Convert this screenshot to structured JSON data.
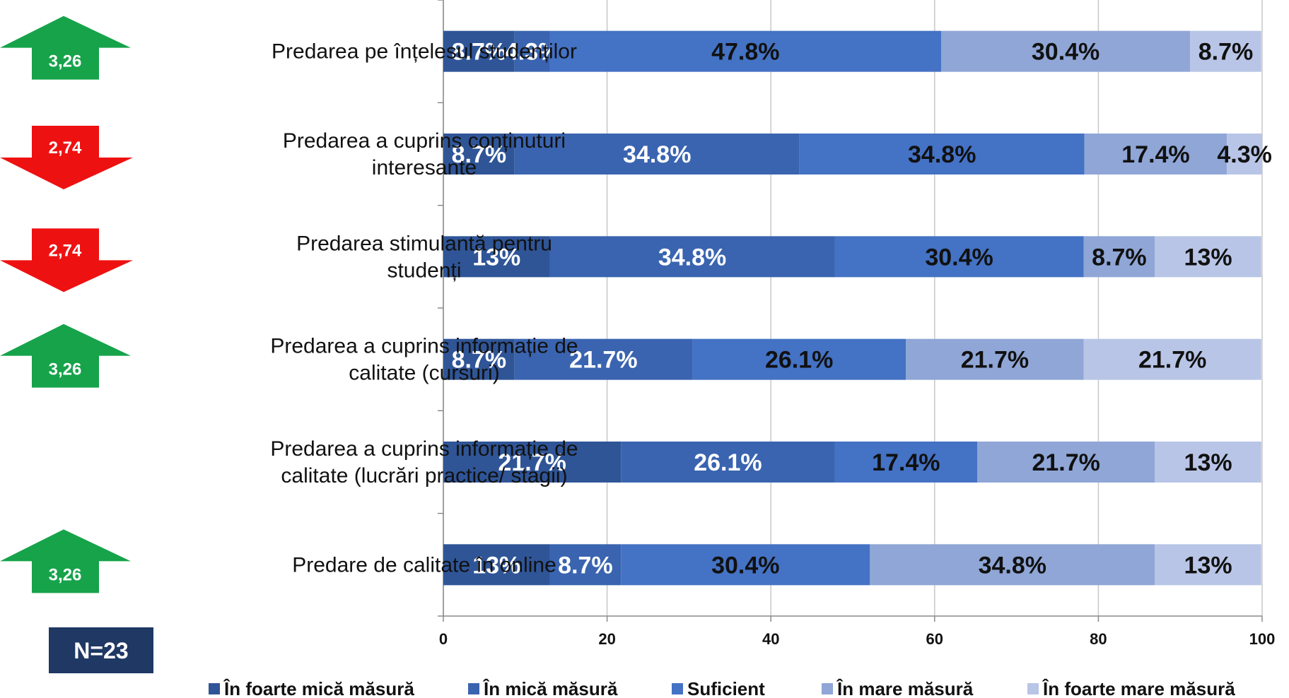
{
  "chart_data": {
    "type": "bar",
    "orientation": "horizontal",
    "stacked": true,
    "categories": [
      [
        "Predarea pe înțelesul studenților"
      ],
      [
        "Predarea a cuprins conținuturi",
        "interesante"
      ],
      [
        "Predarea stimulantă pentru",
        "studenți"
      ],
      [
        "Predarea a cuprins informație de",
        "calitate (cursuri)"
      ],
      [
        "Predarea a cuprins informație de",
        "calitate (lucrări practice/ stagii)"
      ],
      [
        "Predare de calitate în online"
      ]
    ],
    "series": [
      {
        "name": "În foarte mică măsură",
        "color": "#2f5597",
        "values": [
          8.7,
          8.7,
          13,
          8.7,
          21.7,
          13
        ],
        "labels": [
          "8.7%",
          "8.7%",
          "13%",
          "8.7%",
          "21.7%",
          "13%"
        ]
      },
      {
        "name": "În mică măsură",
        "color": "#3a64b0",
        "values": [
          4.3,
          34.8,
          34.8,
          21.7,
          26.1,
          8.7
        ],
        "labels": [
          "4.3%",
          "34.8%",
          "34.8%",
          "21.7%",
          "26.1%",
          "8.7%"
        ]
      },
      {
        "name": "Suficient",
        "color": "#4472c4",
        "values": [
          47.8,
          34.8,
          30.4,
          26.1,
          17.4,
          30.4
        ],
        "labels": [
          "47.8%",
          "34.8%",
          "30.4%",
          "26.1%",
          "17.4%",
          "30.4%"
        ]
      },
      {
        "name": "În mare măsură",
        "color": "#8fa6d6",
        "values": [
          30.4,
          17.4,
          8.7,
          21.7,
          21.7,
          34.8
        ],
        "labels": [
          "30.4%",
          "17.4%",
          "8.7%",
          "21.7%",
          "21.7%",
          "34.8%"
        ]
      },
      {
        "name": "În foarte mare măsură",
        "color": "#b8c5e6",
        "values": [
          8.7,
          4.3,
          13,
          21.7,
          13,
          13
        ],
        "labels": [
          "8.7%",
          "4.3%",
          "13%",
          "21.7%",
          "13%",
          "13%"
        ]
      }
    ],
    "label_text_colors": [
      [
        "#ffffff",
        "#ffffff",
        "#111111",
        "#111111",
        "#111111"
      ],
      [
        "#ffffff",
        "#ffffff",
        "#111111",
        "#111111",
        "#111111"
      ],
      [
        "#ffffff",
        "#ffffff",
        "#111111",
        "#111111",
        "#111111"
      ],
      [
        "#ffffff",
        "#ffffff",
        "#111111",
        "#111111",
        "#111111"
      ],
      [
        "#ffffff",
        "#ffffff",
        "#111111",
        "#111111",
        "#111111"
      ],
      [
        "#ffffff",
        "#ffffff",
        "#111111",
        "#111111",
        "#111111"
      ]
    ],
    "xlim": [
      0,
      100
    ],
    "xticks": [
      "0",
      "20",
      "40",
      "60",
      "80",
      "100"
    ],
    "xlabel": "",
    "ylabel": "",
    "grid": "vertical",
    "legend_position": "bottom",
    "indicators": [
      {
        "score": "3,26",
        "direction": "up",
        "color": "#16a34a"
      },
      {
        "score": "2,74",
        "direction": "down",
        "color": "#ee1111"
      },
      {
        "score": "2,74",
        "direction": "down",
        "color": "#ee1111"
      },
      {
        "score": "3,26",
        "direction": "up",
        "color": "#16a34a"
      },
      null,
      {
        "score": "3,26",
        "direction": "up",
        "color": "#16a34a"
      }
    ],
    "sample_size": "N=23",
    "sample_box_color": "#1f3864"
  }
}
